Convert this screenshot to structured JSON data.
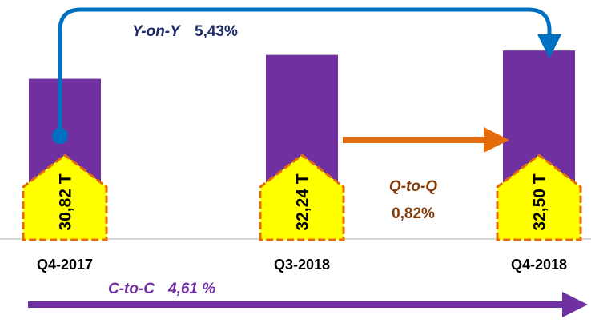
{
  "chart_data": {
    "type": "bar",
    "categories": [
      "Q4-2017",
      "Q3-2018",
      "Q4-2018"
    ],
    "values": [
      30.82,
      32.24,
      32.5
    ],
    "value_labels": [
      "30,82 T",
      "32,24 T",
      "32,50 T"
    ],
    "color": "#7030a0",
    "ylim": [
      21.35,
      33.6
    ],
    "annotations": {
      "yoy": {
        "name": "Y-on-Y",
        "text": "5,43%"
      },
      "qtq": {
        "name": "Q-to-Q",
        "text": "0,82%"
      },
      "ctc": {
        "name": "C-to-C",
        "text": "4,61 %"
      }
    }
  }
}
